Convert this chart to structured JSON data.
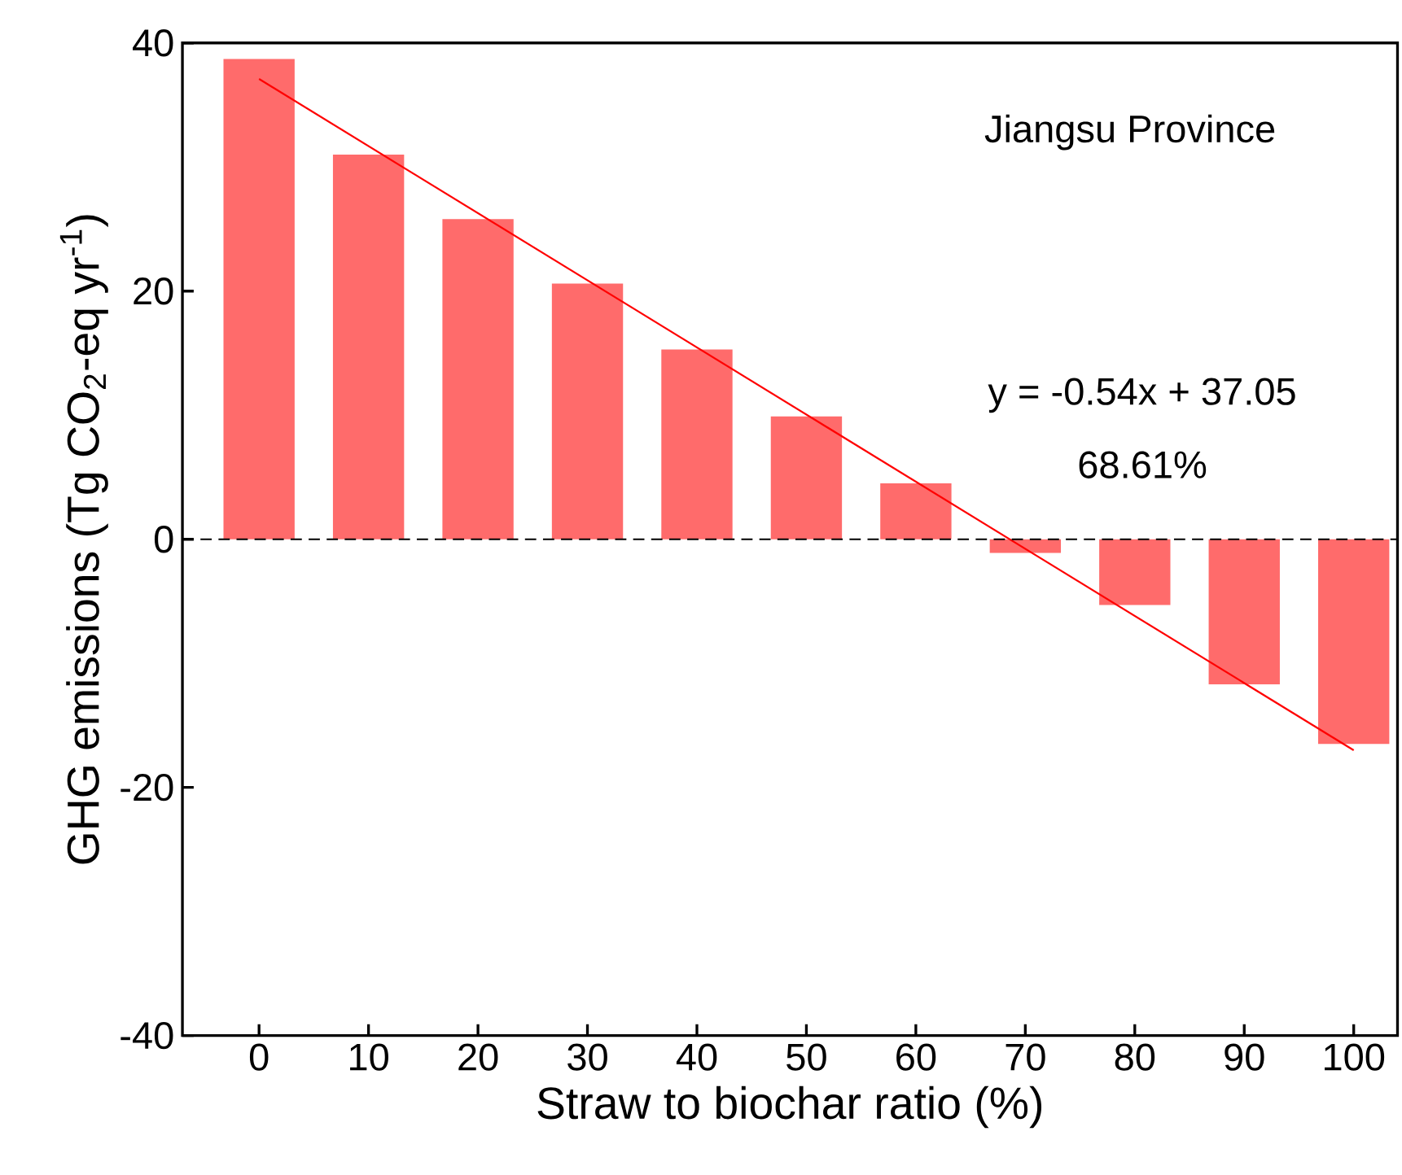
{
  "chart_data": {
    "type": "bar",
    "x": [
      0,
      10,
      20,
      30,
      40,
      50,
      60,
      70,
      80,
      90,
      100
    ],
    "xlabel": "Straw to biochar ratio (%)",
    "ylabel": "GHG emissions (Tg CO$_{2}$-eq yr$^{-1}$)",
    "series": [
      {
        "color": "#ff6b6b",
        "values": [
          38.7,
          31.0,
          25.8,
          20.6,
          15.3,
          9.9,
          4.5,
          -1.1,
          -5.3,
          -11.7,
          -16.5
        ]
      },
      {
        "type": "line",
        "color": "#ff0000",
        "x": [
          0,
          100
        ],
        "values": [
          37.1,
          -17.0
        ]
      }
    ],
    "xlim": [
      -7,
      104
    ],
    "xticks": [
      0,
      10,
      20,
      30,
      40,
      50,
      60,
      70,
      80,
      90,
      100
    ],
    "ylim": [
      -40,
      40
    ],
    "yticks": [
      -40,
      -20,
      0,
      20,
      40
    ],
    "ref_lines": [
      {
        "axis": "y",
        "value": 0,
        "color": "#000000",
        "line_style": "dashed"
      }
    ],
    "annotations": [
      "Jiangsu Province",
      "y = -0.54x + 37.05",
      "68.61%"
    ]
  }
}
